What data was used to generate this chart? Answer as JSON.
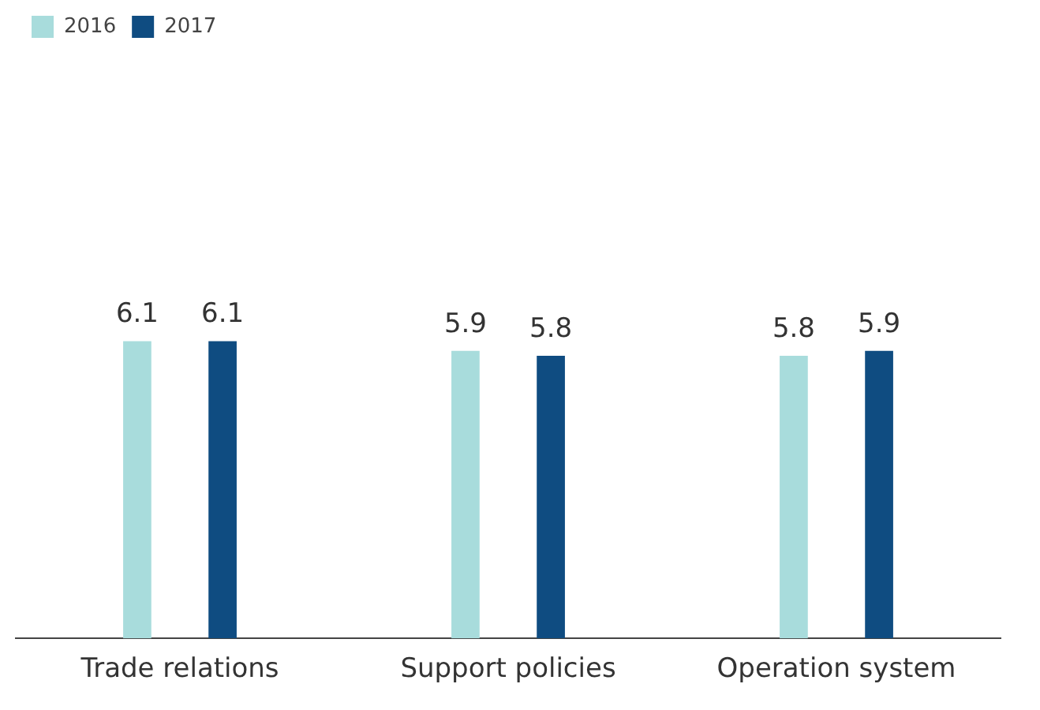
{
  "chart_data": {
    "type": "bar",
    "categories": [
      "Trade relations",
      "Support policies",
      "Operation system"
    ],
    "series": [
      {
        "name": "2016",
        "color": "#a8dcdc",
        "values": [
          6.1,
          5.9,
          5.8
        ]
      },
      {
        "name": "2017",
        "color": "#0f4c81",
        "values": [
          6.1,
          5.8,
          5.9
        ]
      }
    ],
    "data_labels": true,
    "legend": "top left",
    "grid": false
  }
}
